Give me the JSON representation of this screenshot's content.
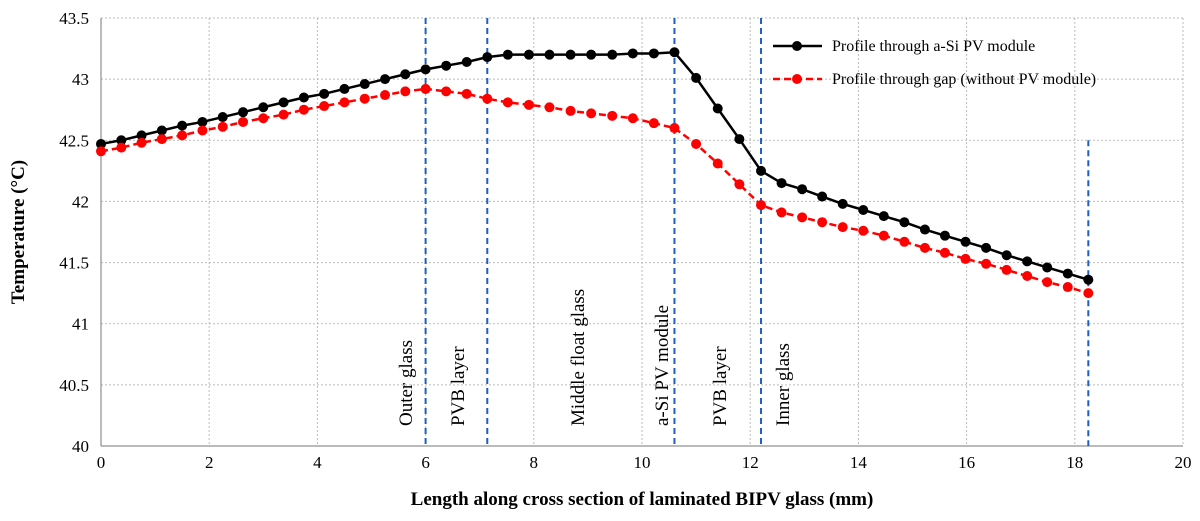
{
  "chart_data": {
    "type": "line",
    "x_label": "Length along cross section of laminated BIPV glass (mm)",
    "y_label": "Temperature (°C)",
    "xlim": [
      0,
      20
    ],
    "xticks": [
      0,
      2,
      4,
      6,
      8,
      10,
      12,
      14,
      16,
      18,
      20
    ],
    "ylim": [
      40,
      43.5
    ],
    "yticks": [
      40,
      40.5,
      41,
      41.5,
      42,
      42.5,
      43,
      43.5
    ],
    "grid": true,
    "legend": "top-right",
    "x": [
      0,
      0.375,
      0.75,
      1.125,
      1.5,
      1.875,
      2.25,
      2.625,
      3,
      3.375,
      3.75,
      4.125,
      4.5,
      4.875,
      5.25,
      5.625,
      6,
      6.38,
      6.76,
      7.14,
      7.52,
      7.91,
      8.29,
      8.68,
      9.06,
      9.45,
      9.83,
      10.22,
      10.6,
      11.0,
      11.4,
      11.8,
      12.2,
      12.58,
      12.96,
      13.33,
      13.71,
      14.09,
      14.47,
      14.85,
      15.23,
      15.6,
      15.98,
      16.36,
      16.74,
      17.12,
      17.49,
      17.87,
      18.25
    ],
    "series": [
      {
        "name": "Profile through a-Si PV module",
        "color": "#000000",
        "dash": false,
        "values": [
          42.47,
          42.5,
          42.54,
          42.58,
          42.62,
          42.65,
          42.69,
          42.73,
          42.77,
          42.81,
          42.85,
          42.88,
          42.92,
          42.96,
          43.0,
          43.04,
          43.08,
          43.11,
          43.14,
          43.18,
          43.2,
          43.2,
          43.2,
          43.2,
          43.2,
          43.2,
          43.21,
          43.21,
          43.22,
          43.01,
          42.76,
          42.51,
          42.25,
          42.15,
          42.1,
          42.04,
          41.98,
          41.93,
          41.88,
          41.83,
          41.77,
          41.72,
          41.67,
          41.62,
          41.56,
          41.51,
          41.46,
          41.41,
          41.36
        ]
      },
      {
        "name": "Profile through gap (without PV module)",
        "color": "#ff0000",
        "dash": true,
        "values": [
          42.41,
          42.44,
          42.48,
          42.51,
          42.54,
          42.58,
          42.61,
          42.65,
          42.68,
          42.71,
          42.75,
          42.78,
          42.81,
          42.84,
          42.87,
          42.9,
          42.92,
          42.9,
          42.88,
          42.84,
          42.81,
          42.79,
          42.77,
          42.74,
          42.72,
          42.7,
          42.68,
          42.64,
          42.6,
          42.47,
          42.31,
          42.14,
          41.97,
          41.91,
          41.87,
          41.83,
          41.79,
          41.76,
          41.72,
          41.67,
          41.62,
          41.58,
          41.53,
          41.49,
          41.44,
          41.39,
          41.34,
          41.3,
          41.25
        ]
      }
    ],
    "boundaries": [
      {
        "x": 6,
        "top": 43.5
      },
      {
        "x": 7.14,
        "top": 43.5
      },
      {
        "x": 10.6,
        "top": 43.5
      },
      {
        "x": 12.2,
        "top": 43.5
      },
      {
        "x": 18.25,
        "top": 42.5
      }
    ],
    "boundary_color": "#1f5fbf",
    "annotations": [
      "Outer glass",
      "PVB layer",
      "Middle float glass",
      "a-Si PV module",
      "PVB layer",
      "Inner glass"
    ]
  }
}
